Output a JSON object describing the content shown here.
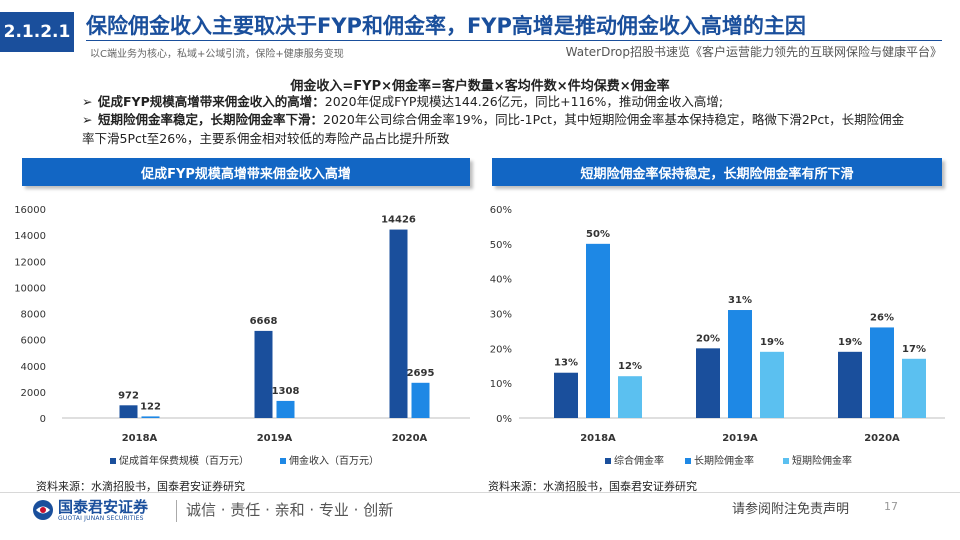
{
  "header": {
    "section": "2.1.2.1",
    "title": "保险佣金收入主要取决于FYP和佣金率，FYP高增是推动佣金收入高增的主因",
    "left_subtitle": "以C端业务为核心，私域+公域引流，保险+健康服务变现",
    "right_subtitle": "WaterDrop招股书速览《客户运营能力领先的互联网保险与健康平台》"
  },
  "formula": "佣金收入=FYP×佣金率=客户数量×客均件数×件均保费×佣金率",
  "bullets": [
    {
      "arrow": "➢",
      "head": "促成FYP规模高增带来佣金收入的高增：",
      "text": "2020年促成FYP规模达144.26亿元，同比+116%，推动佣金收入高增;"
    },
    {
      "arrow": "➢",
      "head": "短期险佣金率稳定，长期险佣金率下滑：",
      "text": "2020年公司综合佣金率19%，同比-1Pct，其中短期险佣金率基本保持稳定，略微下滑2Pct，长期险佣金率下滑5Pct至26%，主要系佣金相对较低的寿险产品占比提升所致"
    }
  ],
  "panels": {
    "left_title": "促成FYP规模高增带来佣金收入高增",
    "right_title": "短期险佣金率保持稳定，长期险佣金率有所下滑",
    "left_source": "资料来源：水滴招股书，国泰君安证券研究",
    "right_source": "资料来源：水滴招股书，国泰君安证券研究"
  },
  "chart_data": [
    {
      "type": "bar",
      "categories": [
        "2018A",
        "2019A",
        "2020A"
      ],
      "series": [
        {
          "name": "促成首年保费规模（百万元）",
          "values": [
            972,
            6668,
            14426
          ],
          "color": "#1a4f9c"
        },
        {
          "name": "佣金收入（百万元）",
          "values": [
            122,
            1308,
            2695
          ],
          "color": "#1e88e5"
        }
      ],
      "yticks": [
        "0",
        "2000",
        "4000",
        "6000",
        "8000",
        "10000",
        "12000",
        "14000",
        "16000"
      ],
      "ylim": [
        0,
        16000
      ],
      "grid": false,
      "legend": "bottom"
    },
    {
      "type": "bar",
      "categories": [
        "2018A",
        "2019A",
        "2020A"
      ],
      "series": [
        {
          "name": "综合佣金率",
          "values": [
            13,
            20,
            19
          ],
          "labels": [
            "13%",
            "20%",
            "19%"
          ],
          "color": "#1a4f9c"
        },
        {
          "name": "长期险佣金率",
          "values": [
            50,
            31,
            26
          ],
          "labels": [
            "50%",
            "31%",
            "26%"
          ],
          "color": "#1e88e5"
        },
        {
          "name": "短期险佣金率",
          "values": [
            12,
            19,
            17
          ],
          "labels": [
            "12%",
            "19%",
            "17%"
          ],
          "color": "#5bc0f0"
        }
      ],
      "yticks": [
        "0%",
        "10%",
        "20%",
        "30%",
        "40%",
        "50%",
        "60%"
      ],
      "ylim": [
        0,
        60
      ],
      "grid": false,
      "legend": "bottom"
    }
  ],
  "footer": {
    "logo_cn": "国泰君安证券",
    "logo_en": "GUOTAI JUNAN SECURITIES",
    "slogan": "诚信 · 责任 · 亲和 · 专业 · 创新",
    "disclaimer": "请参阅附注免责声明",
    "page": "17"
  },
  "colors": {
    "brand": "#1a4f9c",
    "accent": "#1266c4"
  }
}
